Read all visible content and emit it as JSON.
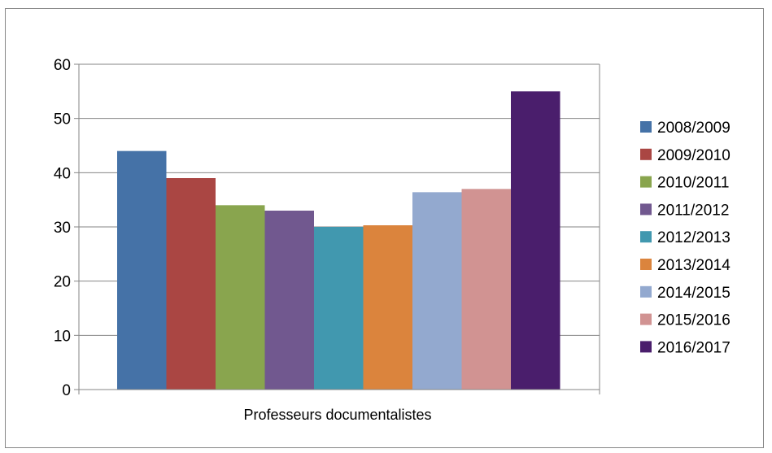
{
  "chart_data": {
    "type": "bar",
    "categories": [
      "Professeurs documentalistes"
    ],
    "series": [
      {
        "name": "2008/2009",
        "values": [
          44
        ],
        "color": "#4572A7"
      },
      {
        "name": "2009/2010",
        "values": [
          39
        ],
        "color": "#AA4643"
      },
      {
        "name": "2010/2011",
        "values": [
          34
        ],
        "color": "#89A54E"
      },
      {
        "name": "2011/2012",
        "values": [
          33
        ],
        "color": "#71588F"
      },
      {
        "name": "2012/2013",
        "values": [
          30
        ],
        "color": "#4198AF"
      },
      {
        "name": "2013/2014",
        "values": [
          30.3
        ],
        "color": "#DB843D"
      },
      {
        "name": "2014/2015",
        "values": [
          36.4
        ],
        "color": "#93A9CF"
      },
      {
        "name": "2015/2016",
        "values": [
          37
        ],
        "color": "#D19392"
      },
      {
        "name": "2016/2017",
        "values": [
          55
        ],
        "color": "#4A1E6C"
      }
    ],
    "title": "",
    "xlabel": "",
    "ylabel": "",
    "ylim": [
      0,
      60
    ],
    "yticks": [
      "0",
      "10",
      "20",
      "30",
      "40",
      "50",
      "60"
    ],
    "grid": true,
    "legend_position": "right"
  }
}
